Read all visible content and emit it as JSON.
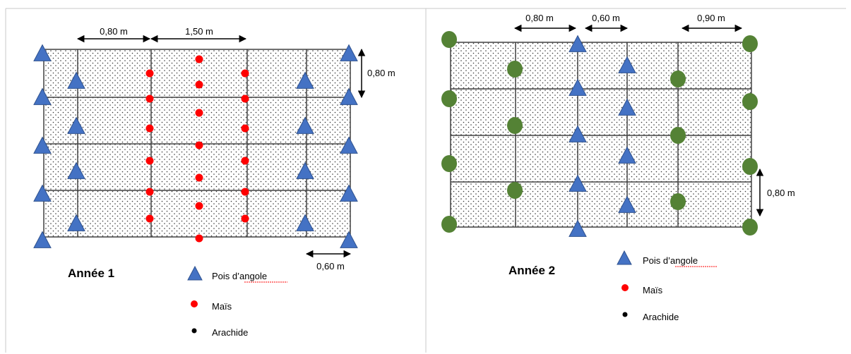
{
  "colors": {
    "pea": "#4472C4",
    "maize": "#FF0000",
    "groundnut": "#548235",
    "legend_groundnut": "#000000",
    "grid": "#404040",
    "dots": "#333333"
  },
  "panel1": {
    "title": "Année 1",
    "dims": {
      "top_left": "0,80 m",
      "top_mid": "1,50 m",
      "right": "0,80 m",
      "bottom_right": "0,60 m"
    },
    "legend": {
      "pea": "Pois d’angole",
      "maize": "Maïs",
      "groundnut": "Arachide"
    }
  },
  "panel2": {
    "title": "Année 2",
    "dims": {
      "top_left": "0,80 m",
      "top_mid": "0,60 m",
      "top_right": "0,90 m",
      "right": "0,80 m"
    },
    "legend": {
      "pea": "Pois d’angole",
      "maize": "Maïs",
      "groundnut": "Arachide"
    }
  }
}
